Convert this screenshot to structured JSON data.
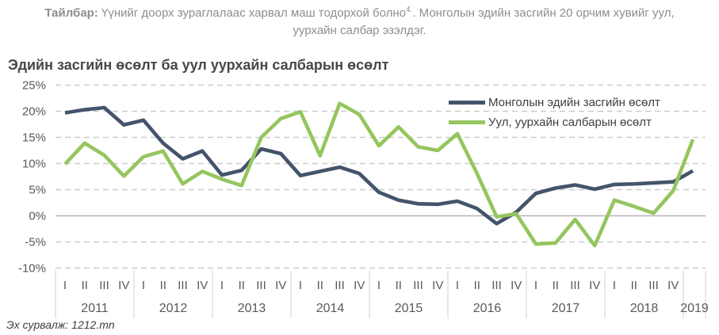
{
  "note": {
    "prefix_bold": "Тайлбар:",
    "line1_before_sup": " Үүнийг доорх зураглалаас харвал маш тодорхой болно",
    "line1_sup": "4.",
    "line1_after_sup": ". Монголын эдийн засгийн 20 орчим хувийг уул,",
    "line2": "уурхайн салбар эзэлдэг."
  },
  "title": "Эдийн засгийн өсөлт ба уул уурхайн салбарын өсөлт",
  "source": "Эх сурвалж: 1212.mn",
  "chart_data": {
    "type": "line",
    "title": "Эдийн засгийн өсөлт ба уул уурхайн салбарын өсөлт",
    "x_years": [
      "2011",
      "2012",
      "2013",
      "2014",
      "2015",
      "2016",
      "2017",
      "2018",
      "2019"
    ],
    "points_per_year": [
      4,
      4,
      4,
      4,
      4,
      4,
      4,
      4,
      1
    ],
    "quarter_labels": [
      "I",
      "II",
      "III",
      "IV"
    ],
    "y_ticks": [
      25,
      20,
      15,
      10,
      5,
      0,
      -5,
      -10
    ],
    "y_tick_labels": [
      "25%",
      "20%",
      "15%",
      "10%",
      "5%",
      "0%",
      "-5%",
      "-10%"
    ],
    "ylim": [
      -10,
      25
    ],
    "grid": "dashed-horizontal",
    "legend_position": "top-right",
    "series": [
      {
        "name": "Монголын эдийн засгийн өсөлт",
        "color": "#44546a",
        "values": [
          19.7,
          20.3,
          20.7,
          17.4,
          18.3,
          13.9,
          10.9,
          12.4,
          7.8,
          8.7,
          12.8,
          11.9,
          7.7,
          8.5,
          9.3,
          8.1,
          4.5,
          3.0,
          2.3,
          2.2,
          2.8,
          1.4,
          -1.5,
          0.7,
          4.3,
          5.3,
          5.9,
          5.1,
          6.0,
          6.1,
          6.3,
          6.5,
          8.6
        ]
      },
      {
        "name": "Уул, уурхайн салбарын өсөлт",
        "color": "#95c55e",
        "values": [
          9.9,
          13.9,
          11.6,
          7.6,
          11.3,
          12.4,
          6.1,
          8.5,
          7.0,
          5.8,
          15.0,
          18.6,
          19.9,
          11.5,
          21.5,
          19.4,
          13.4,
          17.0,
          13.2,
          12.5,
          15.7,
          8.1,
          -0.2,
          0.4,
          -5.4,
          -5.2,
          -0.7,
          -5.7,
          3.0,
          1.8,
          0.5,
          4.8,
          14.6
        ]
      }
    ]
  }
}
